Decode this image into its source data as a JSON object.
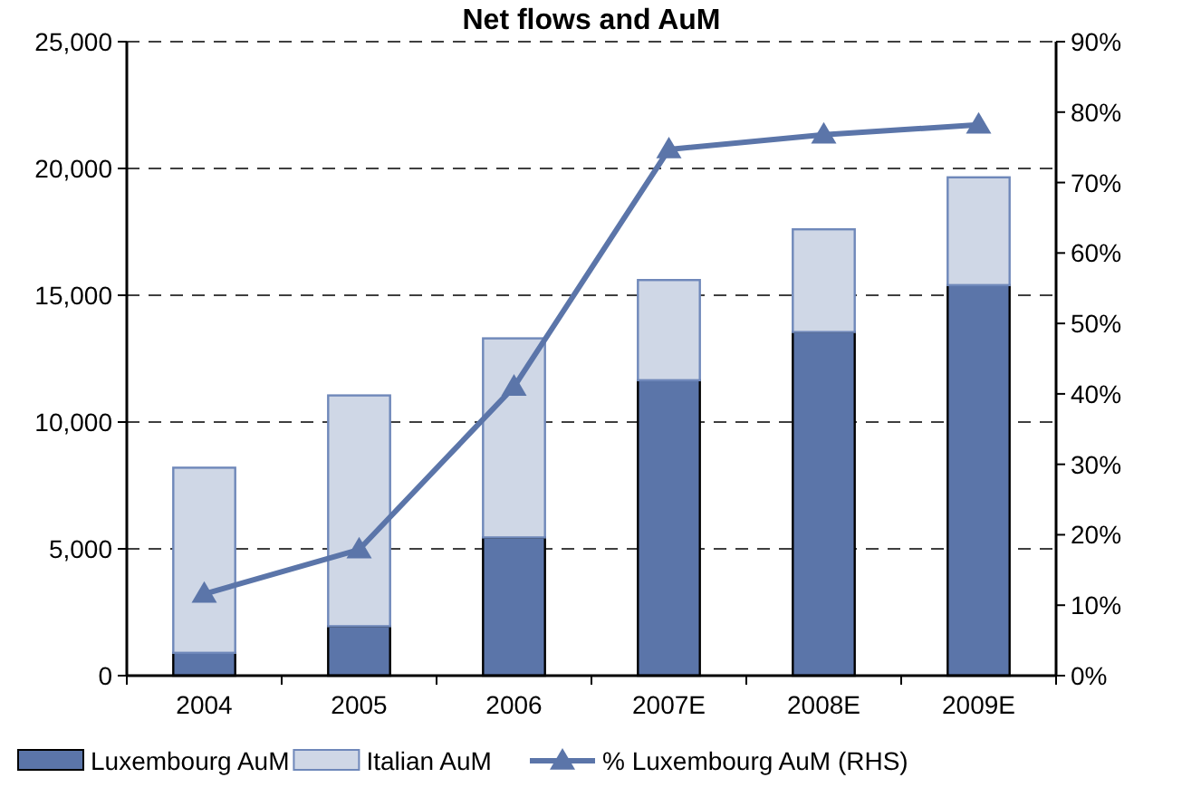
{
  "chart_data": {
    "type": "bar",
    "title": "Net flows and AuM",
    "categories": [
      "2004",
      "2005",
      "2006",
      "2007E",
      "2008E",
      "2009E"
    ],
    "stacked": true,
    "series": [
      {
        "name": "Luxembourg AuM",
        "color": "#5b75a9",
        "values": [
          900,
          1950,
          5450,
          11650,
          13550,
          15400
        ]
      },
      {
        "name": "Italian AuM",
        "color": "#cfd7e6",
        "values": [
          7300,
          9100,
          7850,
          3950,
          4050,
          4250
        ]
      },
      {
        "name": "% Luxembourg AuM (RHS)",
        "type": "line",
        "axis": "y2",
        "color": "#5b75a9",
        "marker": "triangle",
        "values": [
          11.6,
          17.9,
          41,
          74.7,
          76.8,
          78.2
        ]
      }
    ],
    "ylim": [
      0,
      25000
    ],
    "yticks": [
      {
        "value": 0,
        "label": "0"
      },
      {
        "value": 5000,
        "label": "5,000"
      },
      {
        "value": 10000,
        "label": "10,000"
      },
      {
        "value": 15000,
        "label": "15,000"
      },
      {
        "value": 20000,
        "label": "20,000"
      },
      {
        "value": 25000,
        "label": "25,000"
      }
    ],
    "y2lim": [
      0,
      90
    ],
    "y2ticks": [
      {
        "value": 0,
        "label": "0%"
      },
      {
        "value": 10,
        "label": "10%"
      },
      {
        "value": 20,
        "label": "20%"
      },
      {
        "value": 30,
        "label": "30%"
      },
      {
        "value": 40,
        "label": "40%"
      },
      {
        "value": 50,
        "label": "50%"
      },
      {
        "value": 60,
        "label": "60%"
      },
      {
        "value": 70,
        "label": "70%"
      },
      {
        "value": 80,
        "label": "80%"
      },
      {
        "value": 90,
        "label": "90%"
      }
    ],
    "grid": "y",
    "legend": "bottom"
  }
}
